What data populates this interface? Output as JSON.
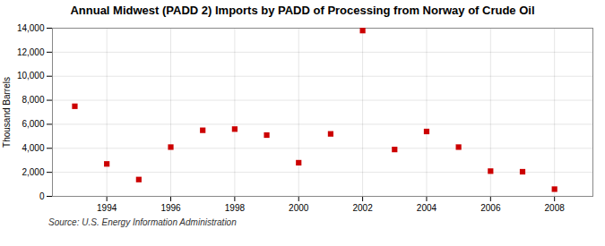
{
  "chart_data": {
    "type": "scatter",
    "title": "Annual Midwest (PADD 2) Imports by PADD of Processing from Norway of Crude Oil",
    "ylabel": "Thousand Barrels",
    "source": "Source: U.S. Energy Information Administration",
    "x": [
      1993,
      1994,
      1995,
      1996,
      1997,
      1998,
      1999,
      2000,
      2001,
      2002,
      2003,
      2004,
      2005,
      2006,
      2007,
      2008
    ],
    "values": [
      7500,
      2700,
      1400,
      4100,
      5500,
      5600,
      5100,
      2800,
      5200,
      13800,
      3900,
      5400,
      4100,
      2100,
      2050,
      600
    ],
    "color": "#cc0000",
    "marker": "square",
    "xlim": [
      1992.3,
      2009.2
    ],
    "xticks": [
      1994,
      1996,
      1998,
      2000,
      2002,
      2004,
      2006,
      2008
    ],
    "ylim": [
      0,
      14000
    ],
    "yticks": [
      0,
      {
        "value": 2000,
        "label": "2,000"
      },
      {
        "value": 4000,
        "label": "4,000"
      },
      {
        "value": 6000,
        "label": "6,000"
      },
      {
        "value": 8000,
        "label": "8,000"
      },
      {
        "value": 10000,
        "label": "10,000"
      },
      {
        "value": 12000,
        "label": "12,000"
      },
      {
        "value": 14000,
        "label": "14,000"
      }
    ],
    "grid": true
  }
}
